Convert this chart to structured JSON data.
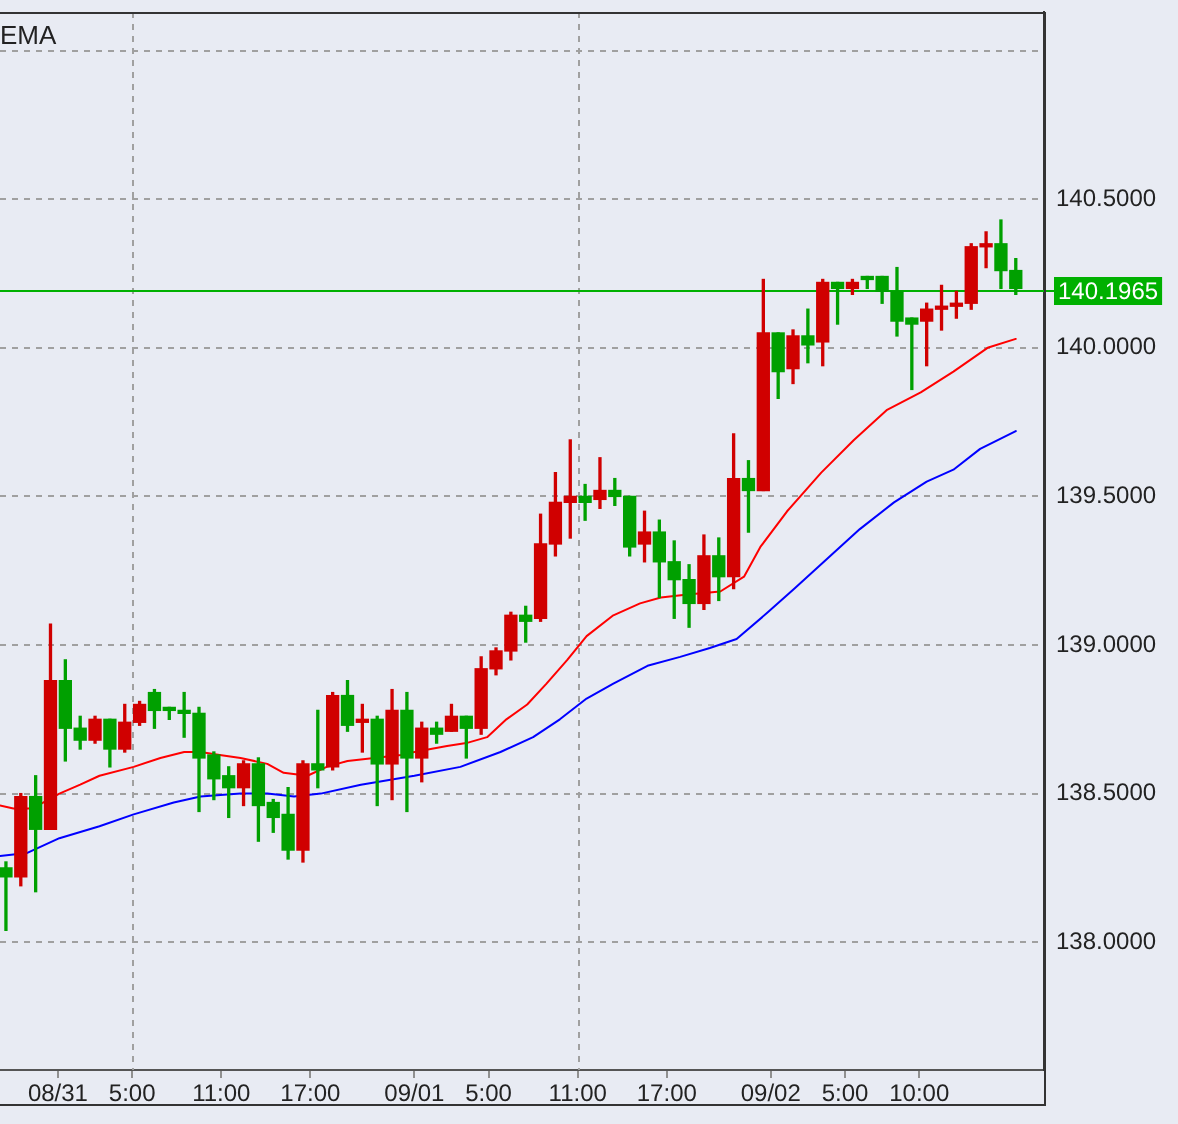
{
  "chart_data": {
    "type": "candlestick",
    "title": "EMA",
    "xlim": [
      "--08-30T20:06",
      "--09-02T18:24"
    ],
    "xticks": [
      {
        "value": "--08-31T00:00",
        "label": "08/31"
      },
      {
        "value": "--08-31T05:00",
        "label": "5:00"
      },
      {
        "value": "--08-31T11:00",
        "label": "11:00"
      },
      {
        "value": "--08-31T17:00",
        "label": "17:00"
      },
      {
        "value": "--09-01T00:00",
        "label": "09/01"
      },
      {
        "value": "--09-01T05:00",
        "label": "5:00"
      },
      {
        "value": "--09-01T11:00",
        "label": "11:00"
      },
      {
        "value": "--09-01T17:00",
        "label": "17:00"
      },
      {
        "value": "--09-02T00:00",
        "label": "09/02"
      },
      {
        "value": "--09-02T05:00",
        "label": "5:00"
      },
      {
        "value": "--09-02T10:00",
        "label": "10:00"
      }
    ],
    "ylim": [
      137.57,
      141.13
    ],
    "yticks": [
      {
        "value": 138,
        "label": "138.0000"
      },
      {
        "value": 138.5,
        "label": "138.5000"
      },
      {
        "value": 139,
        "label": "139.0000"
      },
      {
        "value": 139.5,
        "label": "139.5000"
      },
      {
        "value": 140,
        "label": "140.0000"
      },
      {
        "value": 140.5,
        "label": "140.5000"
      },
      {
        "value": 141,
        "label": null
      }
    ],
    "grid": "y",
    "ref_lines": [
      {
        "axis": "x",
        "value": "--08-31T05:00",
        "color": "#a0a0a0",
        "line_style": "dashed"
      },
      {
        "axis": "x",
        "value": "--09-01T11:00",
        "color": "#a0a0a0",
        "line_style": "dashed"
      },
      {
        "axis": "y",
        "value": 140.1965,
        "label": "140.1965",
        "color": "#00b000"
      }
    ],
    "series": [
      {
        "type": "candlestick",
        "x": [
          "--08-30T20:30",
          "--08-30T21:30",
          "--08-30T22:30",
          "--08-30T23:30",
          "--08-31T00:30",
          "--08-31T01:30",
          "--08-31T02:30",
          "--08-31T03:30",
          "--08-31T04:30",
          "--08-31T05:30",
          "--08-31T06:30",
          "--08-31T07:30",
          "--08-31T08:30",
          "--08-31T09:30",
          "--08-31T10:30",
          "--08-31T11:30",
          "--08-31T12:30",
          "--08-31T13:30",
          "--08-31T14:30",
          "--08-31T15:30",
          "--08-31T16:30",
          "--08-31T17:30",
          "--08-31T18:30",
          "--08-31T19:30",
          "--08-31T20:30",
          "--08-31T21:30",
          "--08-31T22:30",
          "--08-31T23:30",
          "--09-01T00:30",
          "--09-01T01:30",
          "--09-01T02:30",
          "--09-01T03:30",
          "--09-01T04:30",
          "--09-01T05:30",
          "--09-01T06:30",
          "--09-01T07:30",
          "--09-01T08:30",
          "--09-01T09:30",
          "--09-01T10:30",
          "--09-01T11:30",
          "--09-01T12:30",
          "--09-01T13:30",
          "--09-01T14:30",
          "--09-01T15:30",
          "--09-01T16:30",
          "--09-01T17:30",
          "--09-01T18:30",
          "--09-01T19:30",
          "--09-01T20:30",
          "--09-01T21:30",
          "--09-01T22:30",
          "--09-01T23:30",
          "--09-02T00:30",
          "--09-02T01:30",
          "--09-02T02:30",
          "--09-02T03:30",
          "--09-02T04:30",
          "--09-02T05:30",
          "--09-02T06:30",
          "--09-02T07:30",
          "--09-02T08:30",
          "--09-02T09:30",
          "--09-02T10:30",
          "--09-02T11:30",
          "--09-02T12:30",
          "--09-02T13:30",
          "--09-02T14:30",
          "--09-02T15:30",
          "--09-02T16:30"
        ],
        "ohlc": [
          [
            138.25,
            138.27,
            138.04,
            138.22
          ],
          [
            138.22,
            138.5,
            138.19,
            138.49
          ],
          [
            138.49,
            138.56,
            138.17,
            138.38
          ],
          [
            138.38,
            139.07,
            138.38,
            138.88
          ],
          [
            138.88,
            138.95,
            138.61,
            138.72
          ],
          [
            138.72,
            138.76,
            138.65,
            138.68
          ],
          [
            138.68,
            138.76,
            138.67,
            138.75
          ],
          [
            138.75,
            138.75,
            138.59,
            138.65
          ],
          [
            138.65,
            138.8,
            138.64,
            138.74
          ],
          [
            138.74,
            138.81,
            138.73,
            138.8
          ],
          [
            138.84,
            138.85,
            138.72,
            138.78
          ],
          [
            138.79,
            138.79,
            138.75,
            138.78
          ],
          [
            138.78,
            138.84,
            138.69,
            138.77
          ],
          [
            138.77,
            138.79,
            138.44,
            138.62
          ],
          [
            138.63,
            138.64,
            138.48,
            138.55
          ],
          [
            138.56,
            138.59,
            138.42,
            138.52
          ],
          [
            138.52,
            138.61,
            138.46,
            138.6
          ],
          [
            138.6,
            138.62,
            138.34,
            138.46
          ],
          [
            138.47,
            138.48,
            138.37,
            138.42
          ],
          [
            138.43,
            138.52,
            138.28,
            138.31
          ],
          [
            138.31,
            138.61,
            138.27,
            138.6
          ],
          [
            138.6,
            138.78,
            138.52,
            138.58
          ],
          [
            138.59,
            138.84,
            138.58,
            138.83
          ],
          [
            138.83,
            138.88,
            138.71,
            138.73
          ],
          [
            138.74,
            138.8,
            138.64,
            138.75
          ],
          [
            138.75,
            138.76,
            138.46,
            138.6
          ],
          [
            138.6,
            138.85,
            138.48,
            138.78
          ],
          [
            138.78,
            138.84,
            138.44,
            138.62
          ],
          [
            138.62,
            138.74,
            138.54,
            138.72
          ],
          [
            138.72,
            138.74,
            138.67,
            138.7
          ],
          [
            138.71,
            138.8,
            138.71,
            138.76
          ],
          [
            138.76,
            138.76,
            138.62,
            138.72
          ],
          [
            138.72,
            138.96,
            138.7,
            138.92
          ],
          [
            138.92,
            138.99,
            138.9,
            138.98
          ],
          [
            138.98,
            139.11,
            138.95,
            139.1
          ],
          [
            139.1,
            139.13,
            139.01,
            139.08
          ],
          [
            139.09,
            139.44,
            139.08,
            139.34
          ],
          [
            139.34,
            139.58,
            139.3,
            139.48
          ],
          [
            139.48,
            139.69,
            139.36,
            139.5
          ],
          [
            139.5,
            139.54,
            139.42,
            139.48
          ],
          [
            139.49,
            139.63,
            139.46,
            139.52
          ],
          [
            139.52,
            139.56,
            139.47,
            139.5
          ],
          [
            139.5,
            139.5,
            139.3,
            139.33
          ],
          [
            139.34,
            139.45,
            139.28,
            139.38
          ],
          [
            139.38,
            139.42,
            139.16,
            139.28
          ],
          [
            139.28,
            139.35,
            139.09,
            139.22
          ],
          [
            139.22,
            139.27,
            139.06,
            139.14
          ],
          [
            139.14,
            139.37,
            139.12,
            139.3
          ],
          [
            139.3,
            139.36,
            139.15,
            139.23
          ],
          [
            139.23,
            139.71,
            139.19,
            139.56
          ],
          [
            139.56,
            139.62,
            139.38,
            139.52
          ],
          [
            139.52,
            140.23,
            139.52,
            140.05
          ],
          [
            140.05,
            140.05,
            139.83,
            139.92
          ],
          [
            139.93,
            140.06,
            139.88,
            140.04
          ],
          [
            140.04,
            140.13,
            139.95,
            140.01
          ],
          [
            140.02,
            140.23,
            139.94,
            140.22
          ],
          [
            140.22,
            140.22,
            140.08,
            140.2
          ],
          [
            140.2,
            140.23,
            140.18,
            140.22
          ],
          [
            140.24,
            140.24,
            140.2,
            140.23
          ],
          [
            140.24,
            140.24,
            140.15,
            140.19
          ],
          [
            140.19,
            140.27,
            140.04,
            140.09
          ],
          [
            140.1,
            140.1,
            139.86,
            140.08
          ],
          [
            140.09,
            140.15,
            139.94,
            140.13
          ],
          [
            140.13,
            140.21,
            140.06,
            140.14
          ],
          [
            140.14,
            140.19,
            140.1,
            140.15
          ],
          [
            140.15,
            140.35,
            140.13,
            140.34
          ],
          [
            140.34,
            140.39,
            140.27,
            140.35
          ],
          [
            140.35,
            140.43,
            140.2,
            140.26
          ],
          [
            140.26,
            140.3,
            140.18,
            140.2
          ]
        ],
        "colors": [
          "#00a000",
          "#d00000",
          "#00a000",
          "#d00000",
          "#00a000",
          "#00a000",
          "#d00000",
          "#00a000",
          "#d00000",
          "#d00000",
          "#00a000",
          "#00a000",
          "#00a000",
          "#00a000",
          "#00a000",
          "#00a000",
          "#d00000",
          "#00a000",
          "#00a000",
          "#00a000",
          "#d00000",
          "#00a000",
          "#d00000",
          "#00a000",
          "#d00000",
          "#00a000",
          "#d00000",
          "#00a000",
          "#d00000",
          "#00a000",
          "#d00000",
          "#00a000",
          "#d00000",
          "#d00000",
          "#d00000",
          "#00a000",
          "#d00000",
          "#d00000",
          "#d00000",
          "#00a000",
          "#d00000",
          "#00a000",
          "#00a000",
          "#d00000",
          "#00a000",
          "#00a000",
          "#00a000",
          "#d00000",
          "#00a000",
          "#d00000",
          "#00a000",
          "#d00000",
          "#00a000",
          "#d00000",
          "#00a000",
          "#d00000",
          "#00a000",
          "#d00000",
          "#00a000",
          "#00a000",
          "#00a000",
          "#00a000",
          "#d00000",
          "#d00000",
          "#d00000",
          "#d00000",
          "#d00000",
          "#00a000",
          "#00a000"
        ]
      },
      {
        "type": "line",
        "color": "#ff0000",
        "x": [
          "--08-30T20:06",
          "--08-30T21:00",
          "--08-30T22:18",
          "--08-31T00:06",
          "--08-31T01:30",
          "--08-31T02:48",
          "--08-31T05:06",
          "--08-31T06:54",
          "--08-31T08:30",
          "--08-31T09:36",
          "--08-31T10:54",
          "--08-31T12:18",
          "--08-31T14:06",
          "--08-31T15:12",
          "--08-31T16:48",
          "--08-31T18:06",
          "--08-31T19:30",
          "--08-31T21:18",
          "--08-31T23:06",
          "--09-01T00:00",
          "--09-01T02:12",
          "--09-01T03:30",
          "--09-01T04:54",
          "--09-01T06:12",
          "--09-01T07:36",
          "--09-01T08:54",
          "--09-01T10:18",
          "--09-01T11:36",
          "--09-01T13:24",
          "--09-01T15:12",
          "--09-01T16:36",
          "--09-01T18:24",
          "--09-01T20:36",
          "--09-01T22:12",
          "--09-01T23:18",
          "--09-02T01:06",
          "--09-02T03:24",
          "--09-02T05:36",
          "--09-02T07:48",
          "--09-02T10:06",
          "--09-02T12:18",
          "--09-02T14:36",
          "--09-02T16:30"
        ],
        "values": [
          138.46,
          138.45,
          138.45,
          138.5,
          138.53,
          138.56,
          138.59,
          138.62,
          138.64,
          138.64,
          138.63,
          138.62,
          138.6,
          138.57,
          138.56,
          138.59,
          138.61,
          138.62,
          138.63,
          138.64,
          138.66,
          138.67,
          138.69,
          138.75,
          138.8,
          138.87,
          138.95,
          139.03,
          139.1,
          139.14,
          139.16,
          139.17,
          139.18,
          139.23,
          139.33,
          139.45,
          139.58,
          139.69,
          139.79,
          139.85,
          139.92,
          140.0,
          140.03
        ]
      },
      {
        "type": "line",
        "color": "#0000ff",
        "x": [
          "--08-30T20:06",
          "--08-30T21:54",
          "--08-31T00:06",
          "--08-31T02:48",
          "--08-31T05:06",
          "--08-31T07:48",
          "--08-31T09:36",
          "--08-31T12:18",
          "--08-31T14:06",
          "--08-31T15:54",
          "--08-31T17:42",
          "--08-31T20:24",
          "--09-01T00:00",
          "--09-01T03:06",
          "--09-01T05:48",
          "--09-01T08:00",
          "--09-01T09:48",
          "--09-01T11:36",
          "--09-01T13:24",
          "--09-01T15:42",
          "--09-01T17:54",
          "--09-01T19:54",
          "--09-01T21:42",
          "--09-01T23:48",
          "--09-02T01:36",
          "--09-02T03:48",
          "--09-02T06:00",
          "--09-02T08:18",
          "--09-02T10:30",
          "--09-02T12:18",
          "--09-02T14:06",
          "--09-02T16:30"
        ],
        "values": [
          138.29,
          138.3,
          138.35,
          138.39,
          138.43,
          138.47,
          138.49,
          138.5,
          138.5,
          138.49,
          138.5,
          138.53,
          138.56,
          138.59,
          138.64,
          138.69,
          138.75,
          138.82,
          138.87,
          138.93,
          138.96,
          138.99,
          139.02,
          139.11,
          139.19,
          139.29,
          139.39,
          139.48,
          139.55,
          139.59,
          139.66,
          139.72
        ]
      }
    ]
  }
}
